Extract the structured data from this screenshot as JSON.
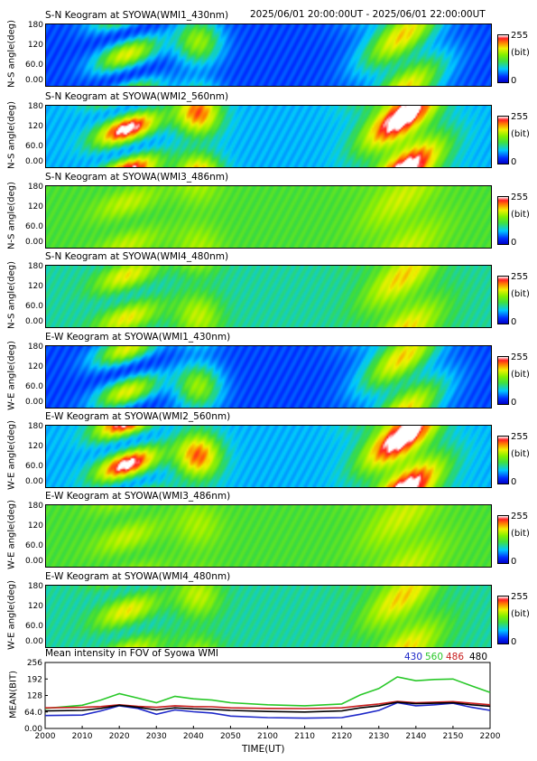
{
  "header": {
    "time_range": "2025/06/01 20:00:00UT - 2025/06/01 22:00:00UT"
  },
  "colorbar": {
    "max_label": "255",
    "unit_label": "(bit)",
    "min_label": "0"
  },
  "keograms": [
    {
      "title": "S-N Keogram at SYOWA(WMI1_430nm)",
      "ylabel": "N-S angle(deg)",
      "yticks": [
        "180",
        "120",
        "60.0",
        "0.00"
      ],
      "palette": "low"
    },
    {
      "title": "S-N Keogram at SYOWA(WMI2_560nm)",
      "ylabel": "N-S angle(deg)",
      "yticks": [
        "180",
        "120",
        "60.0",
        "0.00"
      ],
      "palette": "high"
    },
    {
      "title": "S-N Keogram at SYOWA(WMI3_486nm)",
      "ylabel": "N-S angle(deg)",
      "yticks": [
        "180",
        "120",
        "60.0",
        "0.00"
      ],
      "palette": "green"
    },
    {
      "title": "S-N Keogram at SYOWA(WMI4_480nm)",
      "ylabel": "N-S angle(deg)",
      "yticks": [
        "180",
        "120",
        "60.0",
        "0.00"
      ],
      "palette": "mid"
    },
    {
      "title": "E-W Keogram at SYOWA(WMI1_430nm)",
      "ylabel": "W-E angle(deg)",
      "yticks": [
        "180",
        "120",
        "60.0",
        "0.00"
      ],
      "palette": "low"
    },
    {
      "title": "E-W Keogram at SYOWA(WMI2_560nm)",
      "ylabel": "W-E angle(deg)",
      "yticks": [
        "180",
        "120",
        "60.0",
        "0.00"
      ],
      "palette": "high"
    },
    {
      "title": "E-W Keogram at SYOWA(WMI3_486nm)",
      "ylabel": "W-E angle(deg)",
      "yticks": [
        "180",
        "120",
        "60.0",
        "0.00"
      ],
      "palette": "green"
    },
    {
      "title": "E-W Keogram at SYOWA(WMI4_480nm)",
      "ylabel": "W-E angle(deg)",
      "yticks": [
        "180",
        "120",
        "60.0",
        "0.00"
      ],
      "palette": "mid"
    }
  ],
  "colors": {
    "430": "#1e28c8",
    "560": "#28c828",
    "486": "#c81e1e",
    "480": "#000000"
  },
  "chart_data": {
    "type": "line",
    "title": "Mean intensity in FOV of Syowa WMI",
    "xlabel": "TIME(UT)",
    "ylabel": "MEAN(BIT)",
    "xlim": [
      2000,
      2200
    ],
    "ylim": [
      0,
      256
    ],
    "x_ticks": [
      "2000",
      "2010",
      "2020",
      "2030",
      "2040",
      "2050",
      "2100",
      "2110",
      "2120",
      "2130",
      "2140",
      "2150",
      "2200"
    ],
    "y_ticks": [
      "256",
      "192",
      "128",
      "64.0",
      "0.00"
    ],
    "x": [
      2000,
      2010,
      2015,
      2020,
      2025,
      2030,
      2035,
      2040,
      2045,
      2050,
      2100,
      2110,
      2120,
      2125,
      2130,
      2135,
      2140,
      2145,
      2150,
      2155,
      2200
    ],
    "series": [
      {
        "name": "430",
        "values": [
          50,
          52,
          68,
          88,
          78,
          55,
          72,
          65,
          60,
          48,
          42,
          40,
          42,
          55,
          70,
          100,
          88,
          92,
          98,
          82,
          70
        ]
      },
      {
        "name": "560",
        "values": [
          78,
          90,
          110,
          135,
          118,
          100,
          125,
          115,
          110,
          100,
          92,
          88,
          95,
          130,
          155,
          200,
          185,
          190,
          192,
          165,
          140
        ]
      },
      {
        "name": "486",
        "values": [
          80,
          82,
          85,
          92,
          86,
          82,
          88,
          85,
          84,
          80,
          78,
          77,
          80,
          88,
          95,
          105,
          100,
          102,
          104,
          98,
          92
        ]
      },
      {
        "name": "480",
        "values": [
          68,
          70,
          78,
          90,
          82,
          72,
          80,
          76,
          74,
          70,
          66,
          64,
          68,
          80,
          88,
          102,
          96,
          98,
          100,
          92,
          86
        ]
      }
    ]
  }
}
